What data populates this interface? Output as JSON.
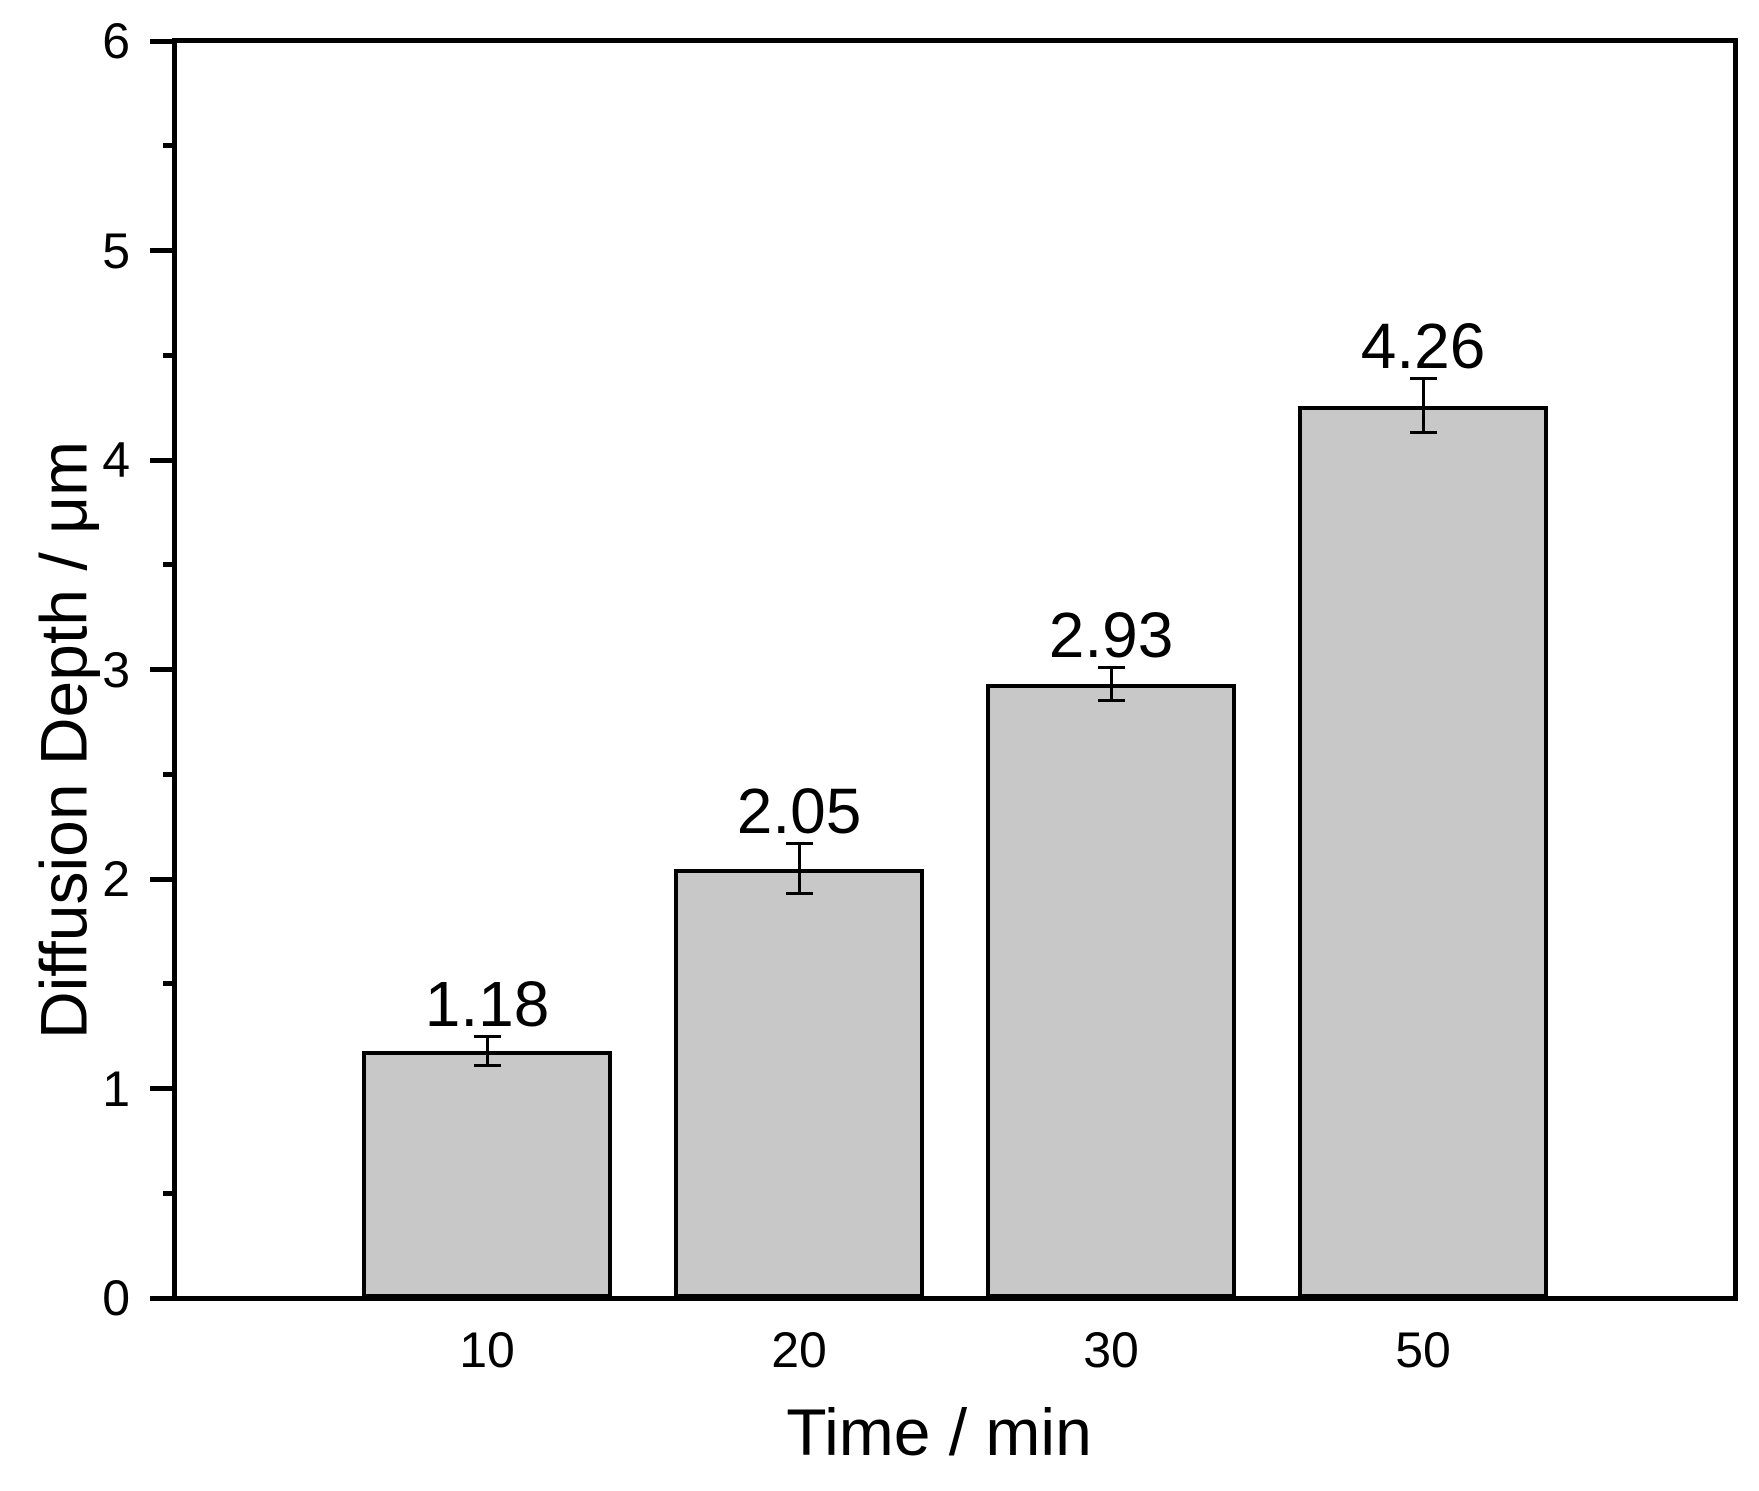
{
  "figure": {
    "background": "#ffffff"
  },
  "chart_data": {
    "type": "bar",
    "title": "",
    "xlabel": "Time / min",
    "ylabel": "Diffusion Depth / μm",
    "categories": [
      "10",
      "20",
      "30",
      "50"
    ],
    "values": [
      1.18,
      2.05,
      2.93,
      4.26
    ],
    "errors": [
      0.07,
      0.12,
      0.08,
      0.13
    ],
    "bar_labels": [
      "1.18",
      "2.05",
      "2.93",
      "4.26"
    ],
    "ylim": [
      0,
      6
    ],
    "y_major_ticks": [
      6,
      5,
      4,
      3,
      2,
      1,
      0
    ],
    "y_minor_ticks": [
      5.5,
      4.5,
      3.5,
      2.5,
      1.5,
      0.5
    ],
    "grid": false,
    "legend": false,
    "error_bars": true,
    "bar_fill": "#c8c8c8",
    "bar_border": "#000000",
    "axis_color": "#000000",
    "text_color": "#000000"
  }
}
